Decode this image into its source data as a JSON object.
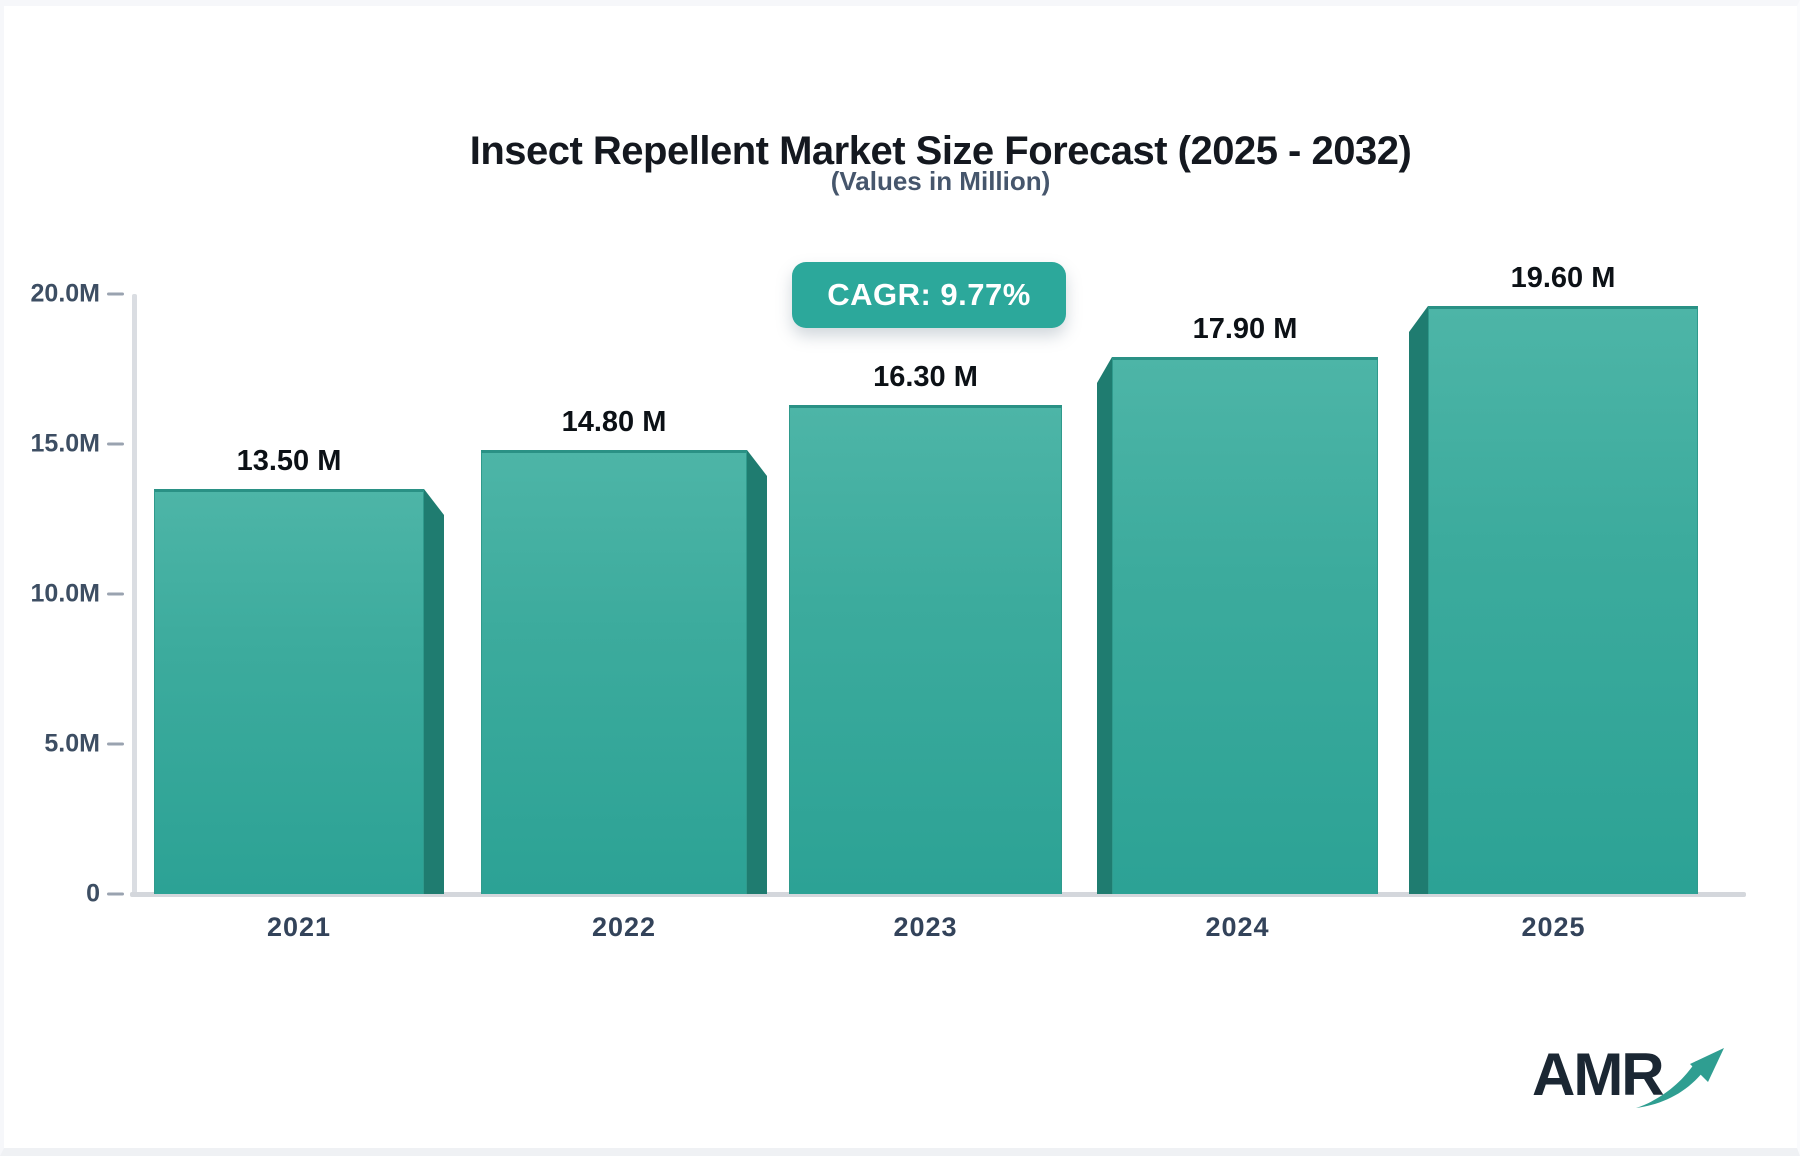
{
  "header": {
    "title": "Insect Repellent Market Size Forecast (2025 - 2032)",
    "subtitle": "(Values in Million)",
    "cagr_badge": "CAGR: 9.77%"
  },
  "brand": {
    "name": "AMR"
  },
  "chart_data": {
    "type": "bar",
    "title": "Insect Repellent Market Size Forecast (2025 - 2032)",
    "subtitle": "(Values in Million)",
    "unit": "Million",
    "cagr_percent": 9.77,
    "categories": [
      "2021",
      "2022",
      "2023",
      "2024",
      "2025"
    ],
    "values": [
      13.5,
      14.8,
      16.3,
      17.9,
      19.6
    ],
    "value_labels": [
      "13.50 M",
      "14.80 M",
      "16.30 M",
      "17.90 M",
      "19.60 M"
    ],
    "ylim": [
      0,
      20
    ],
    "ytick_values": [
      20,
      15,
      10,
      5,
      0
    ],
    "ytick_labels": [
      "20.0M",
      "15.0M",
      "10.0M",
      "5.0M",
      "0"
    ],
    "grid": "off",
    "legend": "none",
    "colors": {
      "bar_face_top": "#4db5a7",
      "bar_face_bottom": "#2ca295",
      "bar_side_shadow": "#1f7c70",
      "badge_background": "#2ca89b",
      "axis_line": "#d4d7dc",
      "tick_text": "#3d4e63",
      "title_text": "#14181f",
      "subtitle_text": "#46566c",
      "brand_text": "#1b2733",
      "brand_arrow": "#2f9e91"
    }
  }
}
